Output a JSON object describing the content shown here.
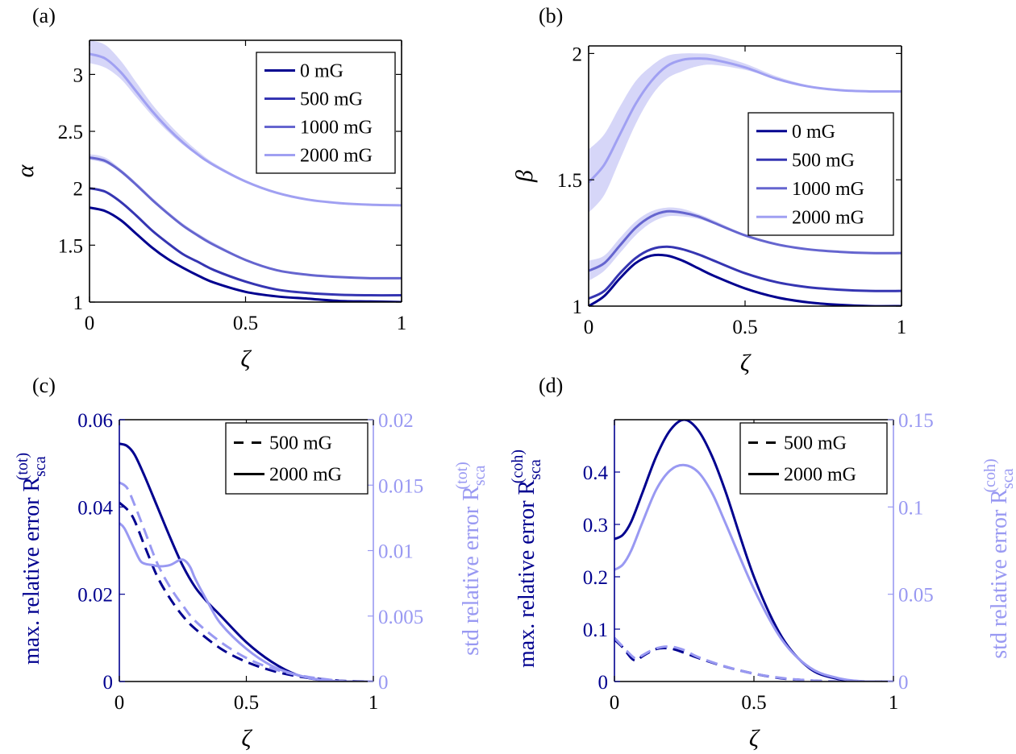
{
  "colors": {
    "s0": "#00008f",
    "s500": "#3535b2",
    "s1000": "#6565cf",
    "s2000": "#a0a0f2",
    "band": "#c8c8f6",
    "left_axis": "#00008f",
    "right_axis": "#9999f2",
    "axis": "#000000"
  },
  "chart_data": [
    {
      "panel": "(a)",
      "type": "line",
      "xlabel": "ζ",
      "ylabel": "α",
      "xlim": [
        0,
        1
      ],
      "ylim": [
        1,
        3.3
      ],
      "xticks": [
        0,
        0.5,
        1
      ],
      "xtick_labels": [
        "0",
        "0.5",
        "1"
      ],
      "yticks": [
        1,
        1.5,
        2,
        2.5,
        3
      ],
      "ytick_labels": [
        "1",
        "1.5",
        "2",
        "2.5",
        "3"
      ],
      "legend_position": "top-right",
      "series": [
        {
          "name": "0 mG",
          "color": "s0",
          "x": [
            0,
            0.05,
            0.1,
            0.15,
            0.2,
            0.25,
            0.3,
            0.35,
            0.4,
            0.5,
            0.6,
            0.7,
            0.8,
            0.9,
            1.0
          ],
          "values": [
            1.83,
            1.8,
            1.72,
            1.6,
            1.48,
            1.38,
            1.3,
            1.23,
            1.17,
            1.09,
            1.05,
            1.03,
            1.01,
            1.005,
            1.0
          ]
        },
        {
          "name": "500 mG",
          "color": "s500",
          "x": [
            0,
            0.05,
            0.1,
            0.15,
            0.2,
            0.25,
            0.3,
            0.35,
            0.4,
            0.5,
            0.6,
            0.7,
            0.8,
            0.9,
            1.0
          ],
          "values": [
            2.0,
            1.97,
            1.88,
            1.76,
            1.63,
            1.52,
            1.42,
            1.35,
            1.28,
            1.18,
            1.11,
            1.08,
            1.065,
            1.06,
            1.06
          ]
        },
        {
          "name": "1000 mG",
          "color": "s1000",
          "x": [
            0,
            0.05,
            0.1,
            0.15,
            0.2,
            0.25,
            0.3,
            0.35,
            0.4,
            0.5,
            0.6,
            0.7,
            0.8,
            0.9,
            1.0
          ],
          "values": [
            2.27,
            2.24,
            2.15,
            2.03,
            1.9,
            1.78,
            1.67,
            1.58,
            1.5,
            1.37,
            1.28,
            1.24,
            1.22,
            1.21,
            1.21
          ],
          "band_lower": [
            2.25,
            2.22,
            2.14,
            2.02,
            1.89,
            1.77,
            1.66,
            1.57,
            1.49,
            1.37,
            1.28,
            1.24,
            1.22,
            1.21,
            1.21
          ],
          "band_upper": [
            2.3,
            2.27,
            2.17,
            2.05,
            1.92,
            1.8,
            1.69,
            1.6,
            1.52,
            1.38,
            1.29,
            1.24,
            1.22,
            1.21,
            1.21
          ]
        },
        {
          "name": "2000 mG",
          "color": "s2000",
          "x": [
            0,
            0.05,
            0.1,
            0.15,
            0.2,
            0.25,
            0.3,
            0.35,
            0.4,
            0.5,
            0.6,
            0.7,
            0.8,
            0.9,
            1.0
          ],
          "values": [
            3.18,
            3.14,
            3.02,
            2.85,
            2.68,
            2.53,
            2.4,
            2.29,
            2.2,
            2.06,
            1.96,
            1.9,
            1.87,
            1.855,
            1.85
          ],
          "band_lower": [
            3.1,
            3.06,
            2.96,
            2.8,
            2.64,
            2.5,
            2.38,
            2.28,
            2.19,
            2.05,
            1.96,
            1.9,
            1.87,
            1.855,
            1.85
          ],
          "band_upper": [
            3.3,
            3.26,
            3.12,
            2.93,
            2.74,
            2.58,
            2.44,
            2.32,
            2.22,
            2.07,
            1.97,
            1.91,
            1.87,
            1.855,
            1.85
          ]
        }
      ]
    },
    {
      "panel": "(b)",
      "type": "line",
      "xlabel": "ζ",
      "ylabel": "β",
      "xlim": [
        0,
        1
      ],
      "ylim": [
        1,
        2.03
      ],
      "xticks": [
        0,
        0.5,
        1
      ],
      "xtick_labels": [
        "0",
        "0.5",
        "1"
      ],
      "yticks": [
        1,
        1.5,
        2
      ],
      "ytick_labels": [
        "1",
        "1.5",
        "2"
      ],
      "legend_position": "middle-right",
      "series": [
        {
          "name": "0 mG",
          "color": "s0",
          "x": [
            0,
            0.05,
            0.1,
            0.15,
            0.2,
            0.25,
            0.3,
            0.35,
            0.4,
            0.5,
            0.6,
            0.7,
            0.8,
            0.9,
            1.0
          ],
          "values": [
            1.0,
            1.04,
            1.11,
            1.17,
            1.2,
            1.2,
            1.18,
            1.15,
            1.12,
            1.07,
            1.035,
            1.015,
            1.005,
            1.0,
            1.0
          ]
        },
        {
          "name": "500 mG",
          "color": "s500",
          "x": [
            0,
            0.05,
            0.1,
            0.15,
            0.2,
            0.25,
            0.3,
            0.35,
            0.4,
            0.5,
            0.6,
            0.7,
            0.8,
            0.9,
            1.0
          ],
          "values": [
            1.03,
            1.06,
            1.13,
            1.19,
            1.225,
            1.235,
            1.225,
            1.205,
            1.18,
            1.13,
            1.095,
            1.075,
            1.065,
            1.06,
            1.06
          ]
        },
        {
          "name": "1000 mG",
          "color": "s1000",
          "x": [
            0,
            0.05,
            0.1,
            0.15,
            0.2,
            0.25,
            0.3,
            0.35,
            0.4,
            0.5,
            0.6,
            0.7,
            0.8,
            0.9,
            1.0
          ],
          "values": [
            1.14,
            1.17,
            1.24,
            1.31,
            1.355,
            1.375,
            1.37,
            1.355,
            1.33,
            1.28,
            1.245,
            1.225,
            1.215,
            1.21,
            1.21
          ],
          "band_lower": [
            1.1,
            1.14,
            1.21,
            1.28,
            1.33,
            1.355,
            1.355,
            1.345,
            1.325,
            1.28,
            1.245,
            1.225,
            1.215,
            1.21,
            1.21
          ],
          "band_upper": [
            1.18,
            1.2,
            1.27,
            1.335,
            1.375,
            1.39,
            1.385,
            1.365,
            1.34,
            1.285,
            1.25,
            1.225,
            1.215,
            1.21,
            1.21
          ]
        },
        {
          "name": "2000 mG",
          "color": "s2000",
          "x": [
            0,
            0.05,
            0.1,
            0.15,
            0.2,
            0.25,
            0.3,
            0.35,
            0.4,
            0.5,
            0.6,
            0.7,
            0.8,
            0.9,
            1.0
          ],
          "values": [
            1.49,
            1.56,
            1.68,
            1.8,
            1.89,
            1.95,
            1.975,
            1.98,
            1.975,
            1.945,
            1.9,
            1.87,
            1.855,
            1.85,
            1.85
          ],
          "band_lower": [
            1.37,
            1.44,
            1.58,
            1.72,
            1.83,
            1.9,
            1.93,
            1.95,
            1.955,
            1.935,
            1.9,
            1.87,
            1.855,
            1.85,
            1.85
          ],
          "band_upper": [
            1.62,
            1.68,
            1.79,
            1.89,
            1.95,
            1.99,
            2.0,
            2.0,
            1.995,
            1.96,
            1.91,
            1.875,
            1.86,
            1.85,
            1.85
          ]
        }
      ]
    },
    {
      "panel": "(c)",
      "type": "line",
      "dual_axis": true,
      "xlabel": "ζ",
      "ylabel_left_prefix": "max. relative error R",
      "ylabel_right_prefix": "std relative error R",
      "ylabel_sub": "sca",
      "ylabel_sup": "(tot)",
      "xlim": [
        0,
        1
      ],
      "ylim_left": [
        0,
        0.06
      ],
      "ylim_right": [
        0,
        0.02
      ],
      "xticks": [
        0,
        0.5,
        1
      ],
      "xtick_labels": [
        "0",
        "0.5",
        "1"
      ],
      "yticks_left": [
        0,
        0.02,
        0.04,
        0.06
      ],
      "ytick_labels_left": [
        "0",
        "0.02",
        "0.04",
        "0.06"
      ],
      "yticks_right": [
        0,
        0.005,
        0.01,
        0.015,
        0.02
      ],
      "ytick_labels_right": [
        "0",
        "0.005",
        "0.01",
        "0.015",
        "0.02"
      ],
      "legend_position": "top-right",
      "legend": [
        {
          "name": "500 mG",
          "style": "dashed"
        },
        {
          "name": "2000 mG",
          "style": "solid"
        }
      ],
      "series": [
        {
          "name": "500 mG max",
          "axis": "left",
          "style": "dashed",
          "color": "left_axis",
          "x": [
            0,
            0.05,
            0.1,
            0.15,
            0.2,
            0.25,
            0.3,
            0.4,
            0.5,
            0.6,
            0.7,
            0.8,
            0.9,
            1.0
          ],
          "values": [
            0.041,
            0.038,
            0.031,
            0.024,
            0.019,
            0.015,
            0.012,
            0.0075,
            0.0045,
            0.0025,
            0.0012,
            0.0005,
            0.0001,
            0
          ]
        },
        {
          "name": "2000 mG max",
          "axis": "left",
          "style": "solid",
          "color": "left_axis",
          "x": [
            0,
            0.03,
            0.06,
            0.1,
            0.15,
            0.2,
            0.25,
            0.3,
            0.35,
            0.4,
            0.5,
            0.6,
            0.7,
            0.8,
            0.9,
            1.0
          ],
          "values": [
            0.0545,
            0.054,
            0.052,
            0.047,
            0.04,
            0.033,
            0.0265,
            0.0215,
            0.018,
            0.015,
            0.009,
            0.0045,
            0.0015,
            0.0003,
            0,
            0
          ]
        },
        {
          "name": "500 mG std",
          "axis": "right",
          "style": "dashed",
          "color": "right_axis",
          "x": [
            0,
            0.03,
            0.06,
            0.1,
            0.15,
            0.2,
            0.25,
            0.3,
            0.4,
            0.5,
            0.6,
            0.7,
            0.8,
            0.9,
            1.0
          ],
          "values": [
            0.0152,
            0.0148,
            0.0135,
            0.0115,
            0.009,
            0.0072,
            0.0058,
            0.0046,
            0.003,
            0.0018,
            0.001,
            0.0005,
            0.0002,
            0,
            0
          ]
        },
        {
          "name": "2000 mG std",
          "axis": "right",
          "style": "solid",
          "color": "right_axis",
          "x": [
            0,
            0.02,
            0.05,
            0.08,
            0.1,
            0.13,
            0.16,
            0.2,
            0.24,
            0.26,
            0.28,
            0.3,
            0.35,
            0.4,
            0.5,
            0.6,
            0.7,
            0.8,
            0.9,
            1.0
          ],
          "values": [
            0.0121,
            0.0117,
            0.0105,
            0.0093,
            0.009,
            0.0089,
            0.0088,
            0.0089,
            0.0093,
            0.0092,
            0.0087,
            0.0078,
            0.006,
            0.0044,
            0.0025,
            0.0012,
            0.0005,
            0.0001,
            0,
            0
          ]
        }
      ]
    },
    {
      "panel": "(d)",
      "type": "line",
      "dual_axis": true,
      "xlabel": "ζ",
      "ylabel_left_prefix": "max. relative error R",
      "ylabel_right_prefix": "std relative error R",
      "ylabel_sub": "sca",
      "ylabel_sup": "(coh)",
      "xlim": [
        0,
        1
      ],
      "ylim_left": [
        0,
        0.5
      ],
      "ylim_right": [
        0,
        0.15
      ],
      "xticks": [
        0,
        0.5,
        1
      ],
      "xtick_labels": [
        "0",
        "0.5",
        "1"
      ],
      "yticks_left": [
        0,
        0.1,
        0.2,
        0.3,
        0.4
      ],
      "ytick_labels_left": [
        "0",
        "0.1",
        "0.2",
        "0.3",
        "0.4"
      ],
      "yticks_right": [
        0,
        0.05,
        0.1,
        0.15
      ],
      "ytick_labels_right": [
        "0",
        "0.05",
        "0.1",
        "0.15"
      ],
      "legend_position": "top-right",
      "legend": [
        {
          "name": "500 mG",
          "style": "dashed"
        },
        {
          "name": "2000 mG",
          "style": "solid"
        }
      ],
      "series": [
        {
          "name": "2000 mG max",
          "axis": "left",
          "style": "solid",
          "color": "left_axis",
          "x": [
            0,
            0.03,
            0.06,
            0.1,
            0.15,
            0.2,
            0.25,
            0.3,
            0.35,
            0.4,
            0.5,
            0.6,
            0.7,
            0.8,
            0.9,
            1.0
          ],
          "values": [
            0.272,
            0.28,
            0.305,
            0.36,
            0.43,
            0.48,
            0.5,
            0.48,
            0.43,
            0.36,
            0.2,
            0.085,
            0.025,
            0.005,
            0,
            0
          ]
        },
        {
          "name": "2000 mG std",
          "axis": "right",
          "style": "solid",
          "color": "right_axis",
          "x": [
            0,
            0.03,
            0.06,
            0.1,
            0.15,
            0.2,
            0.25,
            0.3,
            0.35,
            0.4,
            0.5,
            0.6,
            0.7,
            0.8,
            0.9,
            1.0
          ],
          "values": [
            0.064,
            0.067,
            0.075,
            0.091,
            0.11,
            0.121,
            0.124,
            0.12,
            0.108,
            0.09,
            0.053,
            0.024,
            0.008,
            0.002,
            0,
            0
          ]
        },
        {
          "name": "500 mG max",
          "axis": "left",
          "style": "dashed",
          "color": "left_axis",
          "x": [
            0,
            0.03,
            0.06,
            0.08,
            0.1,
            0.15,
            0.2,
            0.25,
            0.3,
            0.4,
            0.5,
            0.6,
            0.7,
            0.8,
            0.9,
            1.0
          ],
          "values": [
            0.08,
            0.065,
            0.045,
            0.04,
            0.048,
            0.062,
            0.063,
            0.055,
            0.045,
            0.028,
            0.015,
            0.006,
            0.002,
            0,
            0,
            0
          ]
        },
        {
          "name": "500 mG std",
          "axis": "right",
          "style": "dashed",
          "color": "right_axis",
          "x": [
            0,
            0.03,
            0.06,
            0.08,
            0.1,
            0.15,
            0.2,
            0.25,
            0.3,
            0.4,
            0.5,
            0.6,
            0.7,
            0.8,
            0.9,
            1.0
          ],
          "values": [
            0.025,
            0.02,
            0.015,
            0.013,
            0.015,
            0.019,
            0.02,
            0.018,
            0.014,
            0.0085,
            0.0045,
            0.002,
            0.0006,
            0,
            0,
            0
          ]
        }
      ]
    }
  ]
}
